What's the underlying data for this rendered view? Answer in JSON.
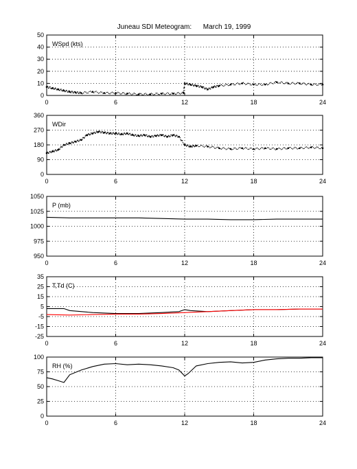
{
  "title": "Juneau SDI Meteogram:      March 19, 1999",
  "chart_data": [
    {
      "type": "scatter",
      "panel_label": "WSpd (kts)",
      "xlim": [
        0,
        24
      ],
      "ylim": [
        0,
        50
      ],
      "x_ticks": [
        0,
        6,
        12,
        18,
        24
      ],
      "y_ticks": [
        0,
        10,
        20,
        30,
        40,
        50
      ],
      "grid": true,
      "series": [
        {
          "color": "#000000",
          "style": "dots",
          "x": [
            0,
            0.5,
            1,
            1.5,
            2,
            2.5,
            3,
            4,
            5,
            6,
            7,
            8,
            9,
            10,
            11,
            11.9,
            12,
            12.5,
            13,
            13.5,
            14,
            14.5,
            15,
            16,
            17,
            18,
            19,
            20,
            21,
            22,
            23,
            24
          ],
          "y": [
            7,
            6,
            5,
            4,
            3,
            2.5,
            2,
            3,
            2,
            2,
            1.5,
            1,
            1,
            1.5,
            1.5,
            2,
            10,
            9,
            8,
            7,
            5,
            7,
            8,
            9,
            10,
            9,
            9,
            11,
            10,
            10,
            9,
            9
          ]
        }
      ]
    },
    {
      "type": "scatter",
      "panel_label": "WDir",
      "xlim": [
        0,
        24
      ],
      "ylim": [
        0,
        360
      ],
      "x_ticks": [
        0,
        6,
        12,
        18,
        24
      ],
      "y_ticks": [
        0,
        90,
        180,
        270,
        360
      ],
      "grid": true,
      "series": [
        {
          "color": "#000000",
          "style": "dots",
          "x": [
            0,
            0.5,
            1,
            1.5,
            2,
            2.5,
            3,
            3.5,
            4,
            4.5,
            5,
            5.5,
            6,
            6.5,
            7,
            7.5,
            8,
            8.5,
            9,
            9.5,
            10,
            10.5,
            11,
            11.5,
            12,
            12.5,
            13,
            14,
            15,
            16,
            17,
            18,
            19,
            20,
            21,
            22,
            23,
            24
          ],
          "y": [
            130,
            140,
            150,
            180,
            190,
            200,
            210,
            240,
            250,
            260,
            255,
            250,
            250,
            245,
            250,
            240,
            235,
            240,
            230,
            235,
            240,
            230,
            240,
            230,
            180,
            170,
            175,
            170,
            160,
            155,
            160,
            155,
            160,
            155,
            160,
            160,
            165,
            160
          ]
        }
      ]
    },
    {
      "type": "line",
      "panel_label": "P (mb)",
      "xlim": [
        0,
        24
      ],
      "ylim": [
        950,
        1050
      ],
      "x_ticks": [
        0,
        6,
        12,
        18,
        24
      ],
      "y_ticks": [
        950,
        975,
        1000,
        1025,
        1050
      ],
      "grid": true,
      "series": [
        {
          "color": "#000000",
          "x": [
            0,
            2,
            4,
            6,
            8,
            10,
            12,
            14,
            16,
            18,
            20,
            22,
            24
          ],
          "y": [
            1015,
            1014,
            1014,
            1014,
            1014,
            1013,
            1012,
            1012,
            1011,
            1011,
            1012,
            1012,
            1012
          ]
        }
      ]
    },
    {
      "type": "line",
      "panel_label": "T,Td (C)",
      "xlim": [
        0,
        24
      ],
      "ylim": [
        -25,
        35
      ],
      "x_ticks": [
        0,
        6,
        12,
        18,
        24
      ],
      "y_ticks": [
        -25,
        -15,
        -5,
        5,
        15,
        25,
        35
      ],
      "grid": true,
      "series": [
        {
          "color": "#000000",
          "x": [
            0,
            1,
            1.5,
            2,
            4,
            6,
            8,
            10,
            11.5,
            12,
            12.5,
            14,
            16,
            18,
            20,
            22,
            24
          ],
          "y": [
            3,
            3,
            3,
            1,
            -1,
            -2,
            -2,
            -1,
            0,
            2,
            1,
            0,
            1,
            2,
            2,
            2.5,
            2.5
          ]
        },
        {
          "color": "#ff0000",
          "x": [
            0,
            2,
            4,
            6,
            8,
            10,
            12,
            14,
            16,
            18,
            20,
            22,
            24
          ],
          "y": [
            -3,
            -3.5,
            -3,
            -2.5,
            -2.5,
            -2,
            -1,
            0,
            1,
            2,
            2,
            2.5,
            2.5
          ]
        }
      ]
    },
    {
      "type": "line",
      "panel_label": "RH (%)",
      "xlim": [
        0,
        24
      ],
      "ylim": [
        0,
        100
      ],
      "x_ticks": [
        0,
        6,
        12,
        18,
        24
      ],
      "y_ticks": [
        0,
        25,
        50,
        75,
        100
      ],
      "grid": true,
      "series": [
        {
          "color": "#000000",
          "x": [
            0,
            0.5,
            1,
            1.5,
            2,
            3,
            4,
            5,
            6,
            7,
            8,
            9,
            10,
            11,
            11.5,
            12,
            12.3,
            13,
            14,
            15,
            16,
            17,
            18,
            19,
            20,
            21,
            22,
            23,
            24
          ],
          "y": [
            65,
            63,
            60,
            57,
            70,
            78,
            84,
            88,
            89,
            87,
            88,
            87,
            85,
            82,
            78,
            68,
            72,
            85,
            89,
            91,
            92,
            90,
            91,
            95,
            97,
            98,
            98,
            99,
            99
          ]
        }
      ]
    }
  ]
}
